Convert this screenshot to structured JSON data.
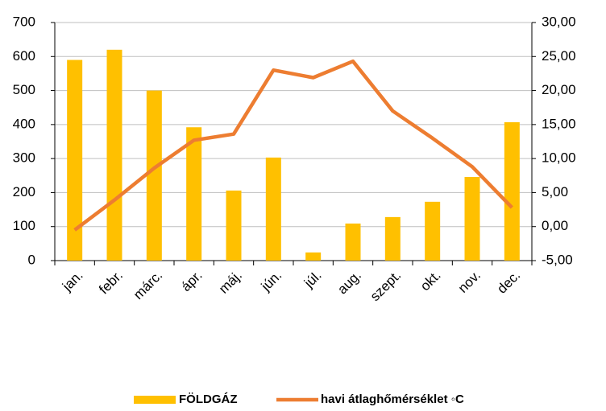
{
  "chart_data": {
    "type": "bar_line",
    "categories": [
      "jan.",
      "febr.",
      "márc.",
      "ápr.",
      "máj.",
      "jún.",
      "júl.",
      "aug.",
      "szept.",
      "okt.",
      "nov.",
      "dec."
    ],
    "series": [
      {
        "name": "FÖLDGÁZ",
        "color": "#FFC000",
        "type": "bar",
        "values": [
          590,
          620,
          500,
          392,
          206,
          303,
          24,
          109,
          128,
          173,
          246,
          407
        ]
      },
      {
        "name": "havi átlaghőmérséklet ◦C",
        "color": "#ED7D31",
        "type": "line",
        "axis": "y2",
        "values": [
          -0.5,
          3.9,
          8.6,
          12.7,
          13.6,
          23.0,
          21.9,
          24.3,
          17.0,
          13.0,
          8.8,
          2.8
        ]
      }
    ],
    "ylim": [
      0,
      700
    ],
    "yticks": [
      0,
      100,
      200,
      300,
      400,
      500,
      600,
      700
    ],
    "y2lim": [
      -5,
      30
    ],
    "y2ticks": [
      {
        "value": -5,
        "label": "-5,00"
      },
      {
        "value": 0,
        "label": "0,00"
      },
      {
        "value": 5,
        "label": "5,00"
      },
      {
        "value": 10,
        "label": "10,00"
      },
      {
        "value": 15,
        "label": "15,00"
      },
      {
        "value": 20,
        "label": "20,00"
      },
      {
        "value": 25,
        "label": "25,00"
      },
      {
        "value": 30,
        "label": "30,00"
      }
    ],
    "grid": true,
    "legend": "bottom"
  }
}
